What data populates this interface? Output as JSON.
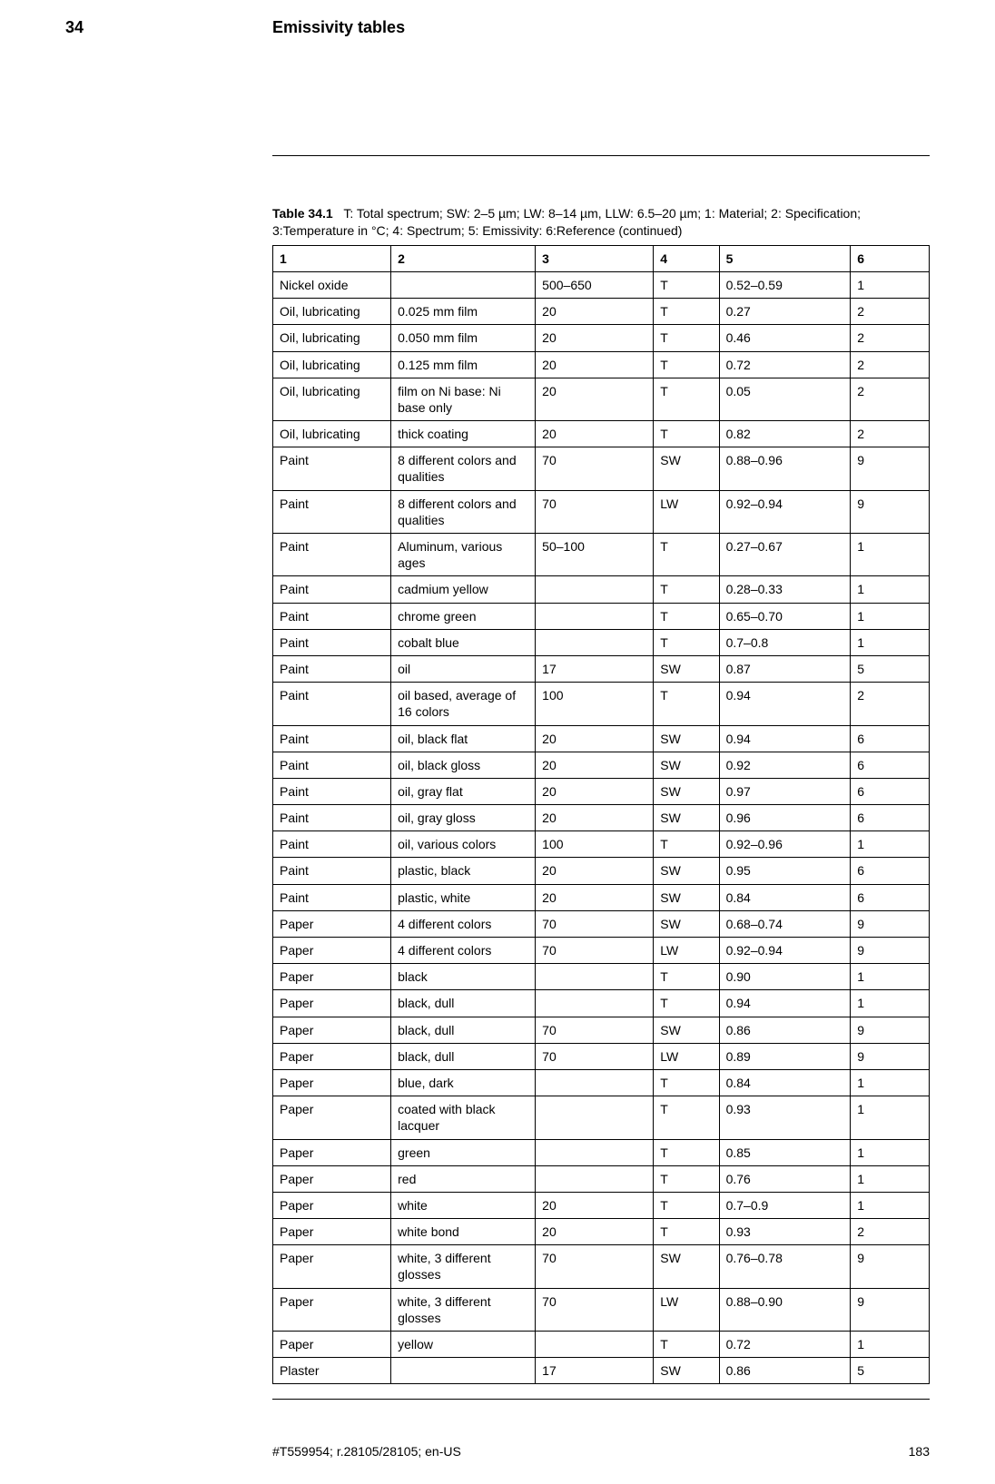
{
  "header": {
    "chapter_number": "34",
    "chapter_title": "Emissivity tables"
  },
  "table": {
    "label": "Table 34.1",
    "caption": "T: Total spectrum; SW: 2–5 µm; LW: 8–14 µm, LLW: 6.5–20 µm; 1: Material; 2: Specification; 3:Temperature in °C; 4: Spectrum; 5: Emissivity: 6:Reference (continued)",
    "columns": [
      "1",
      "2",
      "3",
      "4",
      "5",
      "6"
    ],
    "rows": [
      [
        "Nickel oxide",
        "",
        "500–650",
        "T",
        "0.52–0.59",
        "1"
      ],
      [
        "Oil, lubricating",
        "0.025 mm film",
        "20",
        "T",
        "0.27",
        "2"
      ],
      [
        "Oil, lubricating",
        "0.050 mm film",
        "20",
        "T",
        "0.46",
        "2"
      ],
      [
        "Oil, lubricating",
        "0.125 mm film",
        "20",
        "T",
        "0.72",
        "2"
      ],
      [
        "Oil, lubricating",
        "film on Ni base: Ni base only",
        "20",
        "T",
        "0.05",
        "2"
      ],
      [
        "Oil, lubricating",
        "thick coating",
        "20",
        "T",
        "0.82",
        "2"
      ],
      [
        "Paint",
        "8 different colors and qualities",
        "70",
        "SW",
        "0.88–0.96",
        "9"
      ],
      [
        "Paint",
        "8 different colors and qualities",
        "70",
        "LW",
        "0.92–0.94",
        "9"
      ],
      [
        "Paint",
        "Aluminum, various ages",
        "50–100",
        "T",
        "0.27–0.67",
        "1"
      ],
      [
        "Paint",
        "cadmium yellow",
        "",
        "T",
        "0.28–0.33",
        "1"
      ],
      [
        "Paint",
        "chrome green",
        "",
        "T",
        "0.65–0.70",
        "1"
      ],
      [
        "Paint",
        "cobalt blue",
        "",
        "T",
        "0.7–0.8",
        "1"
      ],
      [
        "Paint",
        "oil",
        "17",
        "SW",
        "0.87",
        "5"
      ],
      [
        "Paint",
        "oil based, average of 16 colors",
        "100",
        "T",
        "0.94",
        "2"
      ],
      [
        "Paint",
        "oil, black flat",
        "20",
        "SW",
        "0.94",
        "6"
      ],
      [
        "Paint",
        "oil, black gloss",
        "20",
        "SW",
        "0.92",
        "6"
      ],
      [
        "Paint",
        "oil, gray flat",
        "20",
        "SW",
        "0.97",
        "6"
      ],
      [
        "Paint",
        "oil, gray gloss",
        "20",
        "SW",
        "0.96",
        "6"
      ],
      [
        "Paint",
        "oil, various colors",
        "100",
        "T",
        "0.92–0.96",
        "1"
      ],
      [
        "Paint",
        "plastic, black",
        "20",
        "SW",
        "0.95",
        "6"
      ],
      [
        "Paint",
        "plastic, white",
        "20",
        "SW",
        "0.84",
        "6"
      ],
      [
        "Paper",
        "4 different colors",
        "70",
        "SW",
        "0.68–0.74",
        "9"
      ],
      [
        "Paper",
        "4 different colors",
        "70",
        "LW",
        "0.92–0.94",
        "9"
      ],
      [
        "Paper",
        "black",
        "",
        "T",
        "0.90",
        "1"
      ],
      [
        "Paper",
        "black, dull",
        "",
        "T",
        "0.94",
        "1"
      ],
      [
        "Paper",
        "black, dull",
        "70",
        "SW",
        "0.86",
        "9"
      ],
      [
        "Paper",
        "black, dull",
        "70",
        "LW",
        "0.89",
        "9"
      ],
      [
        "Paper",
        "blue, dark",
        "",
        "T",
        "0.84",
        "1"
      ],
      [
        "Paper",
        "coated with black lacquer",
        "",
        "T",
        "0.93",
        "1"
      ],
      [
        "Paper",
        "green",
        "",
        "T",
        "0.85",
        "1"
      ],
      [
        "Paper",
        "red",
        "",
        "T",
        "0.76",
        "1"
      ],
      [
        "Paper",
        "white",
        "20",
        "T",
        "0.7–0.9",
        "1"
      ],
      [
        "Paper",
        "white bond",
        "20",
        "T",
        "0.93",
        "2"
      ],
      [
        "Paper",
        "white, 3 different glosses",
        "70",
        "SW",
        "0.76–0.78",
        "9"
      ],
      [
        "Paper",
        "white, 3 different glosses",
        "70",
        "LW",
        "0.88–0.90",
        "9"
      ],
      [
        "Paper",
        "yellow",
        "",
        "T",
        "0.72",
        "1"
      ],
      [
        "Plaster",
        "",
        "17",
        "SW",
        "0.86",
        "5"
      ]
    ]
  },
  "footer": {
    "docref": "#T559954; r.28105/28105; en-US",
    "page_number": "183"
  }
}
